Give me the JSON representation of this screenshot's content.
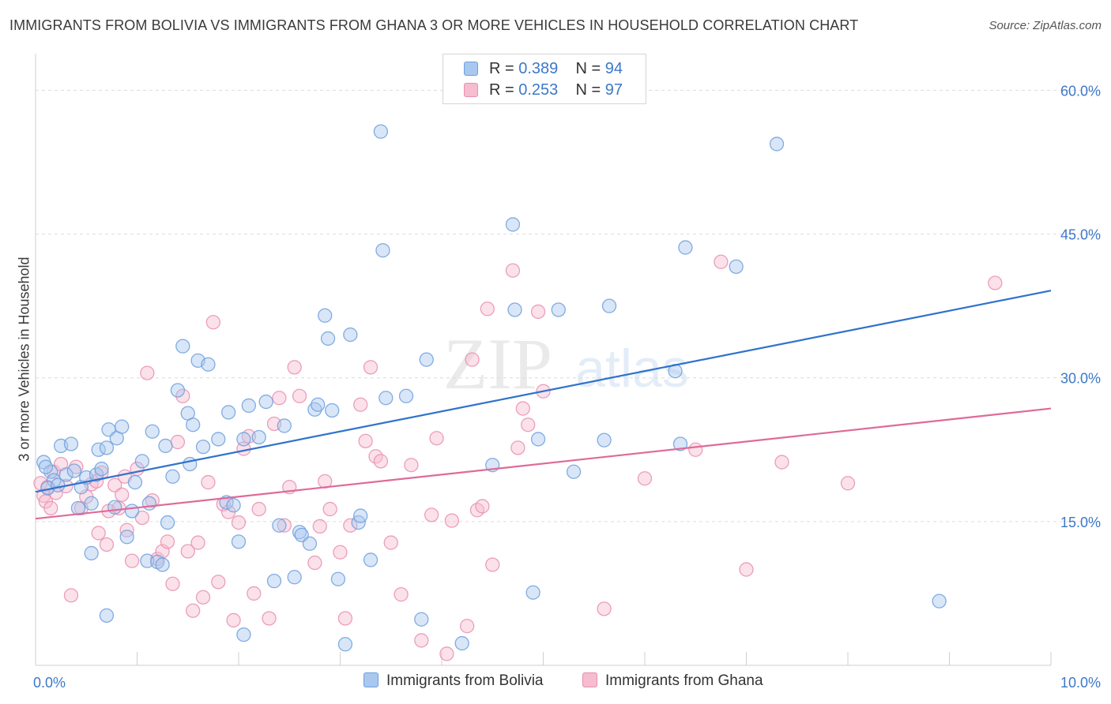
{
  "title": "IMMIGRANTS FROM BOLIVIA VS IMMIGRANTS FROM GHANA 3 OR MORE VEHICLES IN HOUSEHOLD CORRELATION CHART",
  "source": "Source: ZipAtlas.com",
  "watermark": {
    "zip": "ZIP",
    "atlas": "atlas"
  },
  "legend": {
    "r_label": "R =",
    "n_label": "N =",
    "bolivia": {
      "r": "0.389",
      "n": "94"
    },
    "ghana": {
      "r": "0.253",
      "n": "97"
    }
  },
  "colors": {
    "bolivia_fill": "#a9c8f0",
    "bolivia_stroke": "#6f9fdc",
    "bolivia_line": "#2f72cc",
    "ghana_fill": "#f6bcd0",
    "ghana_stroke": "#e88fb0",
    "ghana_line": "#df6a98",
    "tick_label": "#3d78c9",
    "grid": "#dcdcdc"
  },
  "chart_data": {
    "type": "scatter",
    "xlabel": "",
    "ylabel": "3 or more Vehicles in Household",
    "xlim": [
      0,
      10
    ],
    "ylim": [
      0,
      63
    ],
    "x_tick_labels": [
      {
        "v": 0,
        "label": "0.0%"
      },
      {
        "v": 10,
        "label": "10.0%"
      }
    ],
    "y_tick_labels": [
      {
        "v": 15,
        "label": "15.0%"
      },
      {
        "v": 30,
        "label": "30.0%"
      },
      {
        "v": 45,
        "label": "45.0%"
      },
      {
        "v": 60,
        "label": "60.0%"
      }
    ],
    "x_minor_ticks": [
      1,
      2,
      3,
      4,
      5,
      6,
      7,
      8,
      9
    ],
    "series": [
      {
        "name": "Immigrants from Bolivia",
        "color": "#6f9fdc",
        "trend": [
          [
            0,
            18.1
          ],
          [
            10,
            39.1
          ]
        ],
        "points": [
          [
            0.08,
            21.2
          ],
          [
            0.15,
            20.2
          ],
          [
            0.18,
            19.3
          ],
          [
            0.12,
            18.5
          ],
          [
            0.1,
            20.7
          ],
          [
            0.22,
            18.8
          ],
          [
            0.25,
            22.9
          ],
          [
            0.3,
            19.9
          ],
          [
            0.35,
            23.1
          ],
          [
            0.38,
            20.3
          ],
          [
            0.42,
            16.4
          ],
          [
            0.45,
            18.6
          ],
          [
            0.5,
            19.6
          ],
          [
            0.55,
            16.9
          ],
          [
            0.6,
            19.9
          ],
          [
            0.62,
            22.5
          ],
          [
            0.65,
            20.5
          ],
          [
            0.7,
            22.7
          ],
          [
            0.72,
            24.6
          ],
          [
            0.78,
            16.5
          ],
          [
            0.8,
            23.7
          ],
          [
            0.85,
            24.9
          ],
          [
            0.9,
            13.4
          ],
          [
            0.95,
            16.1
          ],
          [
            0.98,
            19.1
          ],
          [
            1.05,
            21.3
          ],
          [
            1.1,
            10.9
          ],
          [
            1.12,
            16.9
          ],
          [
            1.15,
            24.4
          ],
          [
            1.2,
            10.8
          ],
          [
            1.25,
            10.5
          ],
          [
            1.28,
            22.9
          ],
          [
            1.3,
            14.9
          ],
          [
            1.35,
            19.7
          ],
          [
            1.4,
            28.7
          ],
          [
            1.45,
            33.3
          ],
          [
            1.5,
            26.3
          ],
          [
            1.52,
            21.0
          ],
          [
            1.55,
            25.1
          ],
          [
            1.6,
            31.8
          ],
          [
            1.65,
            22.8
          ],
          [
            1.7,
            31.4
          ],
          [
            1.8,
            23.6
          ],
          [
            1.88,
            17.0
          ],
          [
            1.9,
            26.4
          ],
          [
            1.95,
            16.7
          ],
          [
            2.0,
            12.9
          ],
          [
            2.05,
            23.6
          ],
          [
            2.1,
            27.1
          ],
          [
            2.2,
            23.8
          ],
          [
            2.27,
            27.5
          ],
          [
            2.35,
            8.8
          ],
          [
            2.4,
            14.6
          ],
          [
            2.45,
            25.0
          ],
          [
            2.55,
            9.2
          ],
          [
            2.6,
            13.9
          ],
          [
            2.62,
            13.6
          ],
          [
            2.7,
            12.7
          ],
          [
            2.75,
            26.7
          ],
          [
            2.78,
            27.2
          ],
          [
            2.85,
            36.5
          ],
          [
            2.88,
            34.1
          ],
          [
            2.92,
            26.6
          ],
          [
            2.98,
            9.0
          ],
          [
            3.1,
            34.5
          ],
          [
            3.18,
            14.9
          ],
          [
            3.2,
            15.6
          ],
          [
            3.3,
            11.0
          ],
          [
            3.4,
            55.7
          ],
          [
            3.42,
            43.3
          ],
          [
            3.45,
            27.9
          ],
          [
            3.65,
            28.1
          ],
          [
            3.8,
            4.8
          ],
          [
            3.85,
            31.9
          ],
          [
            4.2,
            2.3
          ],
          [
            4.5,
            20.9
          ],
          [
            4.7,
            46.0
          ],
          [
            4.72,
            37.1
          ],
          [
            4.9,
            7.6
          ],
          [
            4.95,
            23.6
          ],
          [
            5.15,
            37.1
          ],
          [
            5.3,
            20.2
          ],
          [
            5.6,
            23.5
          ],
          [
            5.65,
            37.5
          ],
          [
            6.3,
            30.7
          ],
          [
            6.35,
            23.1
          ],
          [
            6.4,
            43.6
          ],
          [
            6.9,
            41.6
          ],
          [
            7.3,
            54.4
          ],
          [
            8.9,
            6.7
          ],
          [
            3.05,
            2.2
          ],
          [
            2.05,
            3.2
          ],
          [
            0.55,
            11.7
          ],
          [
            0.7,
            5.2
          ]
        ]
      },
      {
        "name": "Immigrants from Ghana",
        "color": "#e88fb0",
        "trend": [
          [
            0,
            15.3
          ],
          [
            10,
            26.8
          ]
        ],
        "points": [
          [
            0.05,
            19.0
          ],
          [
            0.08,
            17.7
          ],
          [
            0.1,
            17.1
          ],
          [
            0.12,
            18.6
          ],
          [
            0.15,
            16.4
          ],
          [
            0.18,
            20.2
          ],
          [
            0.2,
            18.0
          ],
          [
            0.25,
            21.0
          ],
          [
            0.3,
            18.7
          ],
          [
            0.35,
            7.3
          ],
          [
            0.4,
            20.7
          ],
          [
            0.45,
            16.4
          ],
          [
            0.5,
            17.6
          ],
          [
            0.55,
            18.9
          ],
          [
            0.6,
            19.2
          ],
          [
            0.62,
            13.8
          ],
          [
            0.65,
            20.1
          ],
          [
            0.7,
            12.6
          ],
          [
            0.72,
            16.1
          ],
          [
            0.78,
            18.8
          ],
          [
            0.82,
            16.4
          ],
          [
            0.85,
            17.8
          ],
          [
            0.88,
            19.7
          ],
          [
            0.9,
            14.1
          ],
          [
            0.95,
            10.9
          ],
          [
            1.0,
            20.5
          ],
          [
            1.05,
            15.4
          ],
          [
            1.1,
            30.5
          ],
          [
            1.15,
            17.2
          ],
          [
            1.2,
            11.1
          ],
          [
            1.25,
            11.9
          ],
          [
            1.3,
            12.9
          ],
          [
            1.35,
            8.5
          ],
          [
            1.4,
            23.3
          ],
          [
            1.45,
            28.1
          ],
          [
            1.5,
            11.9
          ],
          [
            1.55,
            5.7
          ],
          [
            1.6,
            12.8
          ],
          [
            1.65,
            7.1
          ],
          [
            1.7,
            19.1
          ],
          [
            1.75,
            35.8
          ],
          [
            1.8,
            8.7
          ],
          [
            1.85,
            16.8
          ],
          [
            1.9,
            16.0
          ],
          [
            1.95,
            4.7
          ],
          [
            2.0,
            14.9
          ],
          [
            2.05,
            22.6
          ],
          [
            2.1,
            23.9
          ],
          [
            2.15,
            7.5
          ],
          [
            2.2,
            16.3
          ],
          [
            2.3,
            4.9
          ],
          [
            2.35,
            25.2
          ],
          [
            2.4,
            27.9
          ],
          [
            2.45,
            14.6
          ],
          [
            2.5,
            18.6
          ],
          [
            2.55,
            31.1
          ],
          [
            2.6,
            28.1
          ],
          [
            2.75,
            10.7
          ],
          [
            2.8,
            14.5
          ],
          [
            2.85,
            19.2
          ],
          [
            2.9,
            16.3
          ],
          [
            3.0,
            11.8
          ],
          [
            3.05,
            4.9
          ],
          [
            3.1,
            14.6
          ],
          [
            3.2,
            27.2
          ],
          [
            3.25,
            23.4
          ],
          [
            3.3,
            31.1
          ],
          [
            3.35,
            21.8
          ],
          [
            3.4,
            21.3
          ],
          [
            3.5,
            12.8
          ],
          [
            3.6,
            7.4
          ],
          [
            3.7,
            20.9
          ],
          [
            3.8,
            2.6
          ],
          [
            3.9,
            15.7
          ],
          [
            3.95,
            23.7
          ],
          [
            4.05,
            1.2
          ],
          [
            4.1,
            15.1
          ],
          [
            4.25,
            4.1
          ],
          [
            4.3,
            31.9
          ],
          [
            4.35,
            16.2
          ],
          [
            4.4,
            16.6
          ],
          [
            4.45,
            37.2
          ],
          [
            4.5,
            10.5
          ],
          [
            4.7,
            41.2
          ],
          [
            4.75,
            22.7
          ],
          [
            4.8,
            26.8
          ],
          [
            4.85,
            25.1
          ],
          [
            4.95,
            36.9
          ],
          [
            5.0,
            28.6
          ],
          [
            5.6,
            5.9
          ],
          [
            6.0,
            19.5
          ],
          [
            6.5,
            22.5
          ],
          [
            6.75,
            42.1
          ],
          [
            7.0,
            10.0
          ],
          [
            7.35,
            21.2
          ],
          [
            8.0,
            19.0
          ],
          [
            9.45,
            39.9
          ]
        ]
      }
    ]
  }
}
